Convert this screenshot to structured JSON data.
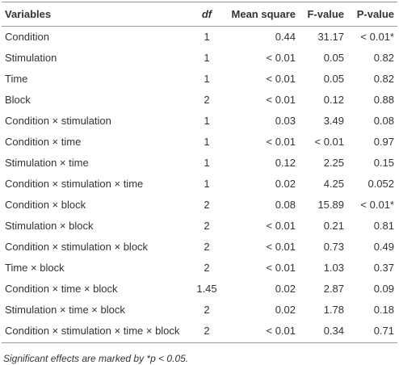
{
  "table": {
    "header": [
      "Variables",
      "df",
      "Mean square",
      "F-value",
      "P-value"
    ],
    "rows": [
      [
        "Condition",
        "1",
        "0.44",
        "31.17",
        "< 0.01*"
      ],
      [
        "Stimulation",
        "1",
        "< 0.01",
        "0.05",
        "0.82"
      ],
      [
        "Time",
        "1",
        "< 0.01",
        "0.05",
        "0.82"
      ],
      [
        "Block",
        "2",
        "< 0.01",
        "0.12",
        "0.88"
      ],
      [
        "Condition × stimulation",
        "1",
        "0.03",
        "3.49",
        "0.08"
      ],
      [
        "Condition × time",
        "1",
        "< 0.01",
        "< 0.01",
        "0.97"
      ],
      [
        "Stimulation × time",
        "1",
        "0.12",
        "2.25",
        "0.15"
      ],
      [
        "Condition × stimulation × time",
        "1",
        "0.02",
        "4.25",
        "0.052"
      ],
      [
        "Condition × block",
        "2",
        "0.08",
        "15.89",
        "< 0.01*"
      ],
      [
        "Stimulation × block",
        "2",
        "< 0.01",
        "0.21",
        "0.81"
      ],
      [
        "Condition × stimulation × block",
        "2",
        "< 0.01",
        "0.73",
        "0.49"
      ],
      [
        "Time × block",
        "2",
        "< 0.01",
        "1.03",
        "0.37"
      ],
      [
        "Condition × time × block",
        "1.45",
        "0.02",
        "2.87",
        "0.09"
      ],
      [
        "Stimulation × time × block",
        "2",
        "0.02",
        "1.78",
        "0.18"
      ],
      [
        "Condition × stimulation × time × block",
        "2",
        "< 0.01",
        "0.34",
        "0.71"
      ]
    ],
    "footnote": "Significant effects are marked by *p < 0.05."
  }
}
